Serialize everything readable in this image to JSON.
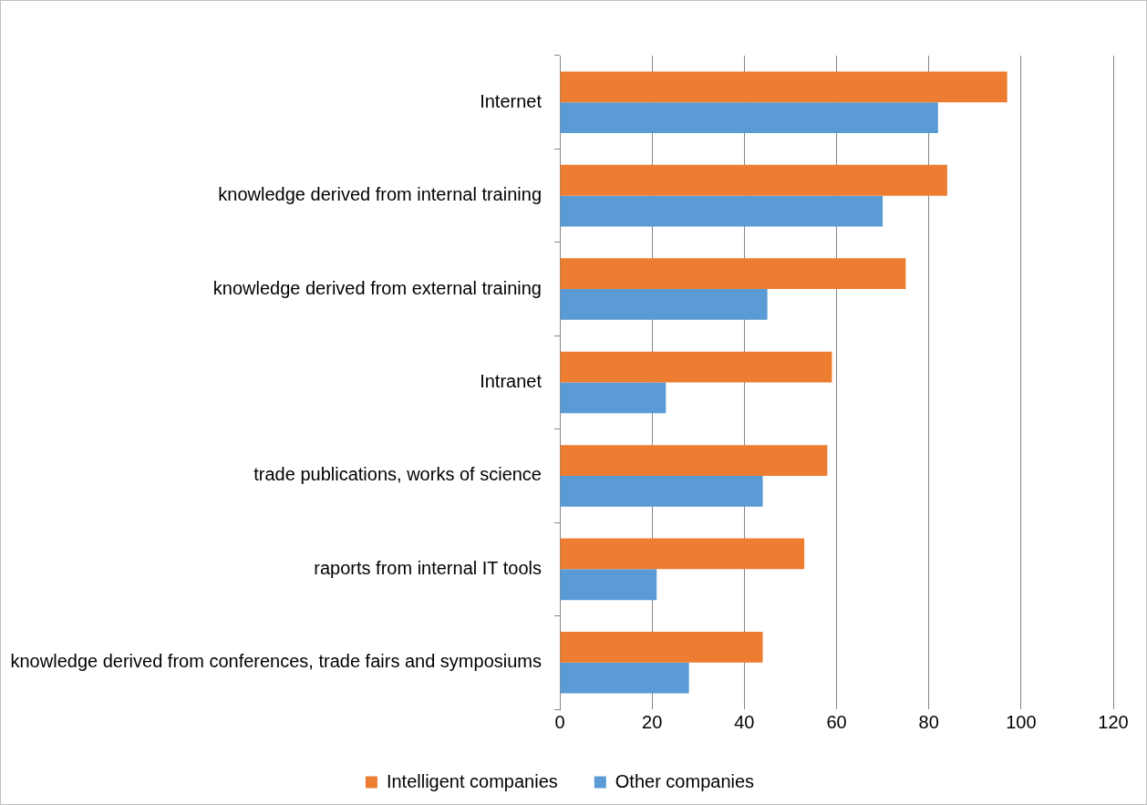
{
  "chart_data": {
    "type": "bar",
    "orientation": "horizontal",
    "categories": [
      "Internet",
      "knowledge derived from internal training",
      "knowledge derived from external training",
      "Intranet",
      "trade publications, works of science",
      "raports from internal IT tools",
      "knowledge derived from conferences, trade fairs and symposiums"
    ],
    "series": [
      {
        "name": "Intelligent companies",
        "color": "#ed7d31",
        "values": [
          97,
          84,
          75,
          59,
          58,
          53,
          44
        ]
      },
      {
        "name": "Other companies",
        "color": "#5b9bd5",
        "values": [
          82,
          70,
          45,
          23,
          44,
          21,
          28
        ]
      }
    ],
    "xlim": [
      0,
      120
    ],
    "xticks": [
      0,
      20,
      40,
      60,
      80,
      100,
      120
    ],
    "grid": "x",
    "legend": "bottom"
  }
}
